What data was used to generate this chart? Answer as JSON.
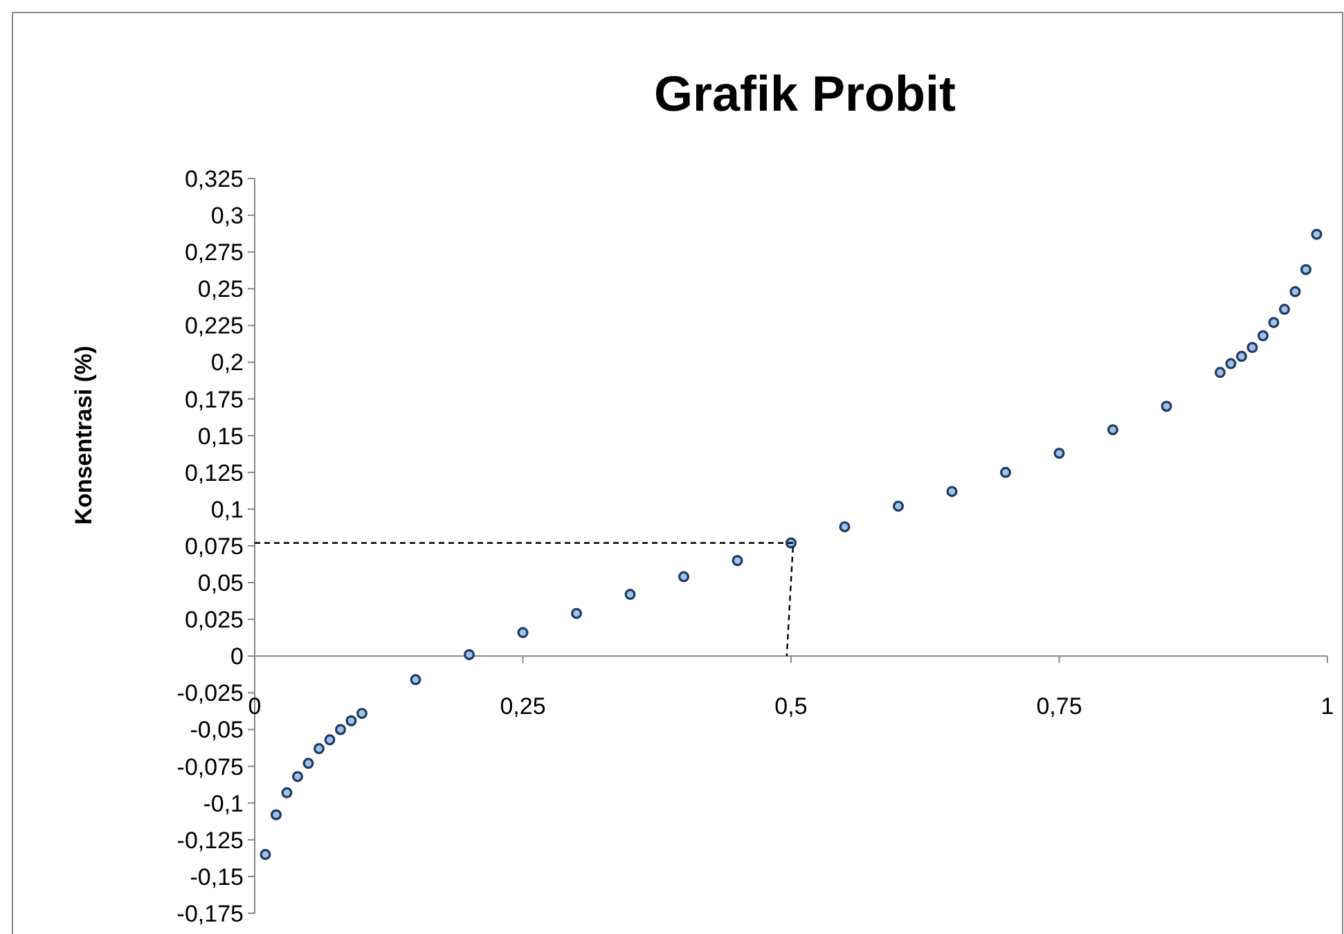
{
  "chart_data": {
    "type": "scatter",
    "title": "Grafik Probit",
    "ylabel": "Konsentrasi (%)",
    "xlim": [
      0,
      1
    ],
    "ylim": [
      -0.175,
      0.325
    ],
    "xticks": [
      {
        "value": 0,
        "label": "0"
      },
      {
        "value": 0.25,
        "label": "0,25"
      },
      {
        "value": 0.5,
        "label": "0,5"
      },
      {
        "value": 0.75,
        "label": "0,75"
      },
      {
        "value": 1,
        "label": "1"
      }
    ],
    "yticks": [
      {
        "value": -0.175,
        "label": "-0,175"
      },
      {
        "value": -0.15,
        "label": "-0,15"
      },
      {
        "value": -0.125,
        "label": "-0,125"
      },
      {
        "value": -0.1,
        "label": "-0,1"
      },
      {
        "value": -0.075,
        "label": "-0,075"
      },
      {
        "value": -0.05,
        "label": "-0,05"
      },
      {
        "value": -0.025,
        "label": "-0,025"
      },
      {
        "value": 0,
        "label": "0"
      },
      {
        "value": 0.025,
        "label": "0,025"
      },
      {
        "value": 0.05,
        "label": "0,05"
      },
      {
        "value": 0.075,
        "label": "0,075"
      },
      {
        "value": 0.1,
        "label": "0,1"
      },
      {
        "value": 0.125,
        "label": "0,125"
      },
      {
        "value": 0.15,
        "label": "0,15"
      },
      {
        "value": 0.175,
        "label": "0,175"
      },
      {
        "value": 0.2,
        "label": "0,2"
      },
      {
        "value": 0.225,
        "label": "0,225"
      },
      {
        "value": 0.25,
        "label": "0,25"
      },
      {
        "value": 0.275,
        "label": "0,275"
      },
      {
        "value": 0.3,
        "label": "0,3"
      },
      {
        "value": 0.325,
        "label": "0,325"
      }
    ],
    "grid": false,
    "series": [
      {
        "color": "#1f3864",
        "marker": "circle",
        "x": [
          0.01,
          0.02,
          0.03,
          0.04,
          0.05,
          0.06,
          0.07,
          0.08,
          0.09,
          0.1,
          0.15,
          0.2,
          0.25,
          0.3,
          0.35,
          0.4,
          0.45,
          0.5,
          0.55,
          0.6,
          0.65,
          0.7,
          0.75,
          0.8,
          0.85,
          0.9,
          0.91,
          0.92,
          0.93,
          0.94,
          0.95,
          0.96,
          0.97,
          0.98,
          0.99
        ],
        "values": [
          -0.135,
          -0.108,
          -0.093,
          -0.082,
          -0.073,
          -0.063,
          -0.057,
          -0.05,
          -0.044,
          -0.039,
          -0.016,
          0.001,
          0.016,
          0.029,
          0.042,
          0.054,
          0.065,
          0.077,
          0.088,
          0.102,
          0.112,
          0.125,
          0.138,
          0.154,
          0.17,
          0.193,
          0.199,
          0.204,
          0.21,
          0.218,
          0.227,
          0.236,
          0.248,
          0.263,
          0.287
        ]
      },
      {
        "type": "line",
        "color": "#000000",
        "line_style": "dashed",
        "x": [
          0,
          0.502,
          0.496
        ],
        "values": [
          0.077,
          0.077,
          0
        ]
      }
    ]
  }
}
